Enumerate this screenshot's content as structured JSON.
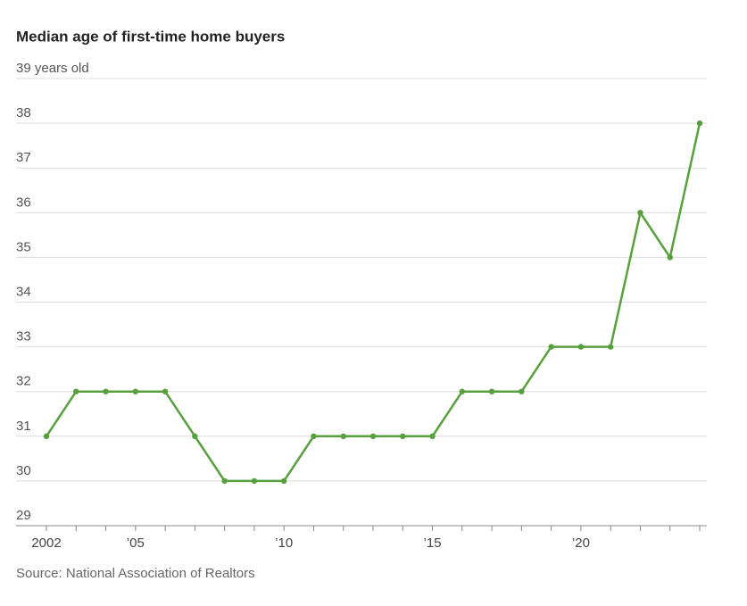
{
  "chart_data": {
    "type": "line",
    "title": "Median age of first-time home buyers",
    "source": "Source: National Association of Realtors",
    "x": [
      2002,
      2003,
      2004,
      2005,
      2006,
      2007,
      2008,
      2009,
      2010,
      2011,
      2012,
      2013,
      2014,
      2015,
      2016,
      2017,
      2018,
      2019,
      2020,
      2021,
      2022,
      2023,
      2024
    ],
    "series": [
      {
        "name": "Median age",
        "color": "#58a03e",
        "values": [
          31,
          32,
          32,
          32,
          32,
          31,
          30,
          30,
          30,
          31,
          31,
          31,
          31,
          31,
          32,
          32,
          32,
          33,
          33,
          33,
          36,
          35,
          38
        ]
      }
    ],
    "xlim": [
      2002,
      2024
    ],
    "xticks": [
      2002,
      {
        "value": 2005,
        "label": "’05"
      },
      {
        "value": 2010,
        "label": "’10"
      },
      {
        "value": 2015,
        "label": "’15"
      },
      {
        "value": 2020,
        "label": "’20"
      }
    ],
    "ylim": [
      29,
      39
    ],
    "yticks": [
      29,
      30,
      31,
      32,
      33,
      34,
      35,
      36,
      37,
      38,
      {
        "value": 39,
        "label": "39 years old"
      }
    ],
    "grid": true
  }
}
